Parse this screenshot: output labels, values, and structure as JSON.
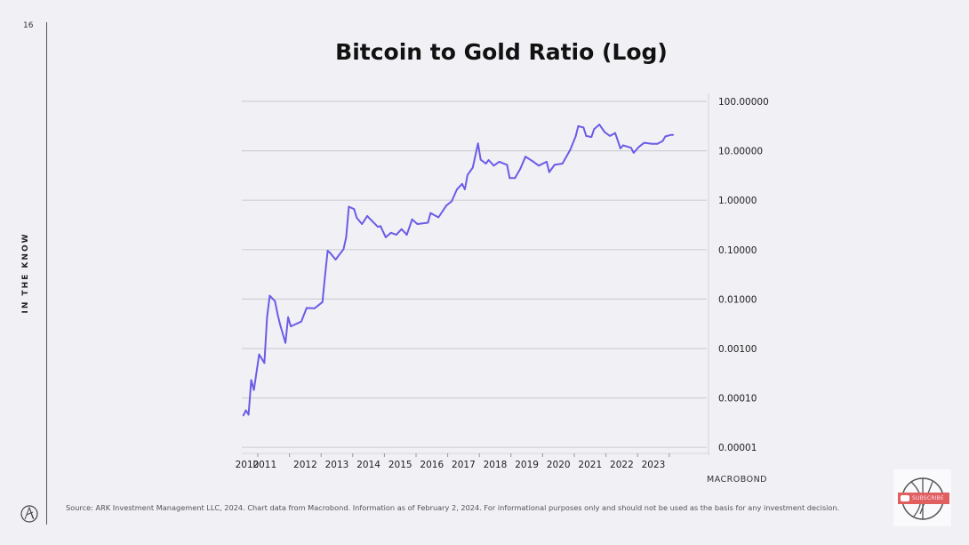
{
  "page_number": "16",
  "side_label": "IN THE KNOW",
  "source": "Source: ARK Investment Management LLC, 2024. Chart data from Macrobond. Information as of February 2, 2024. For informational purposes only and should not be used as the basis for any investment decision.",
  "macrobond": "MACROBOND",
  "subscribe_label": "SUBSCRIBE",
  "colors": {
    "line": "#6b5ce7",
    "background": "#f0f0f5",
    "subscribe": "#e06060"
  },
  "chart_data": {
    "type": "line",
    "title": "Bitcoin to Gold Ratio (Log)",
    "xlabel": "",
    "ylabel": "",
    "y_scale": "log",
    "y_axis_side": "right",
    "ylim": [
      1e-05,
      100
    ],
    "xlim": [
      "2010-07",
      "2024-02"
    ],
    "grid": "horizontal",
    "y_ticks": [
      "100.00000",
      "10.00000",
      "1.00000",
      "0.10000",
      "0.01000",
      "0.00100",
      "0.00010",
      "0.00001"
    ],
    "x_ticks": [
      "2010",
      "2011",
      "2012",
      "2013",
      "2014",
      "2015",
      "2016",
      "2017",
      "2018",
      "2019",
      "2020",
      "2021",
      "2022",
      "2023"
    ],
    "series": [
      {
        "x": [
          "2010-07",
          "2010-08",
          "2010-09",
          "2010-10",
          "2010-11",
          "2011-01",
          "2011-03",
          "2011-04",
          "2011-05",
          "2011-07",
          "2011-08",
          "2011-09",
          "2011-11",
          "2011-12",
          "2012-01",
          "2012-05",
          "2012-07",
          "2012-10",
          "2013-01",
          "2013-02",
          "2013-03",
          "2013-04",
          "2013-06",
          "2013-09",
          "2013-10",
          "2013-11",
          "2014-01",
          "2014-02",
          "2014-04",
          "2014-06",
          "2014-07",
          "2014-10",
          "2014-11",
          "2015-01",
          "2015-03",
          "2015-05",
          "2015-07",
          "2015-09",
          "2015-11",
          "2016-01",
          "2016-05",
          "2016-06",
          "2016-09",
          "2016-12",
          "2017-02",
          "2017-04",
          "2017-06",
          "2017-07",
          "2017-08",
          "2017-10",
          "2017-12",
          "2018-01",
          "2018-03",
          "2018-04",
          "2018-06",
          "2018-08",
          "2018-11",
          "2018-12",
          "2019-02",
          "2019-04",
          "2019-06",
          "2019-09",
          "2019-11",
          "2020-02",
          "2020-03",
          "2020-05",
          "2020-08",
          "2020-11",
          "2021-01",
          "2021-02",
          "2021-04",
          "2021-05",
          "2021-07",
          "2021-08",
          "2021-10",
          "2021-12",
          "2022-02",
          "2022-04",
          "2022-06",
          "2022-07",
          "2022-10",
          "2022-11",
          "2023-01",
          "2023-03",
          "2023-06",
          "2023-08",
          "2023-10",
          "2023-11",
          "2024-01",
          "2024-02"
        ],
        "y": [
          4.4e-05,
          5.6e-05,
          4.6e-05,
          0.00023,
          0.000145,
          0.00076,
          0.00051,
          0.0043,
          0.0117,
          0.0091,
          0.0049,
          0.003,
          0.0013,
          0.0043,
          0.0028,
          0.0035,
          0.0066,
          0.0065,
          0.0087,
          0.0295,
          0.095,
          0.085,
          0.063,
          0.102,
          0.178,
          0.74,
          0.66,
          0.44,
          0.33,
          0.48,
          0.42,
          0.29,
          0.3,
          0.178,
          0.22,
          0.2,
          0.26,
          0.2,
          0.41,
          0.33,
          0.35,
          0.55,
          0.45,
          0.78,
          0.95,
          1.66,
          2.14,
          1.66,
          3.24,
          4.57,
          14.1,
          6.6,
          5.5,
          6.5,
          5.0,
          6.0,
          5.2,
          2.8,
          2.8,
          4.3,
          7.6,
          6.0,
          5.0,
          6.0,
          3.7,
          5.2,
          5.5,
          10.5,
          19.5,
          31.6,
          29.5,
          20,
          19,
          27.5,
          33.9,
          24,
          20,
          22.9,
          11.2,
          12.9,
          11.5,
          9.1,
          12,
          14.5,
          13.8,
          13.8,
          15.8,
          19.5,
          20.9,
          21.0
        ]
      }
    ]
  }
}
